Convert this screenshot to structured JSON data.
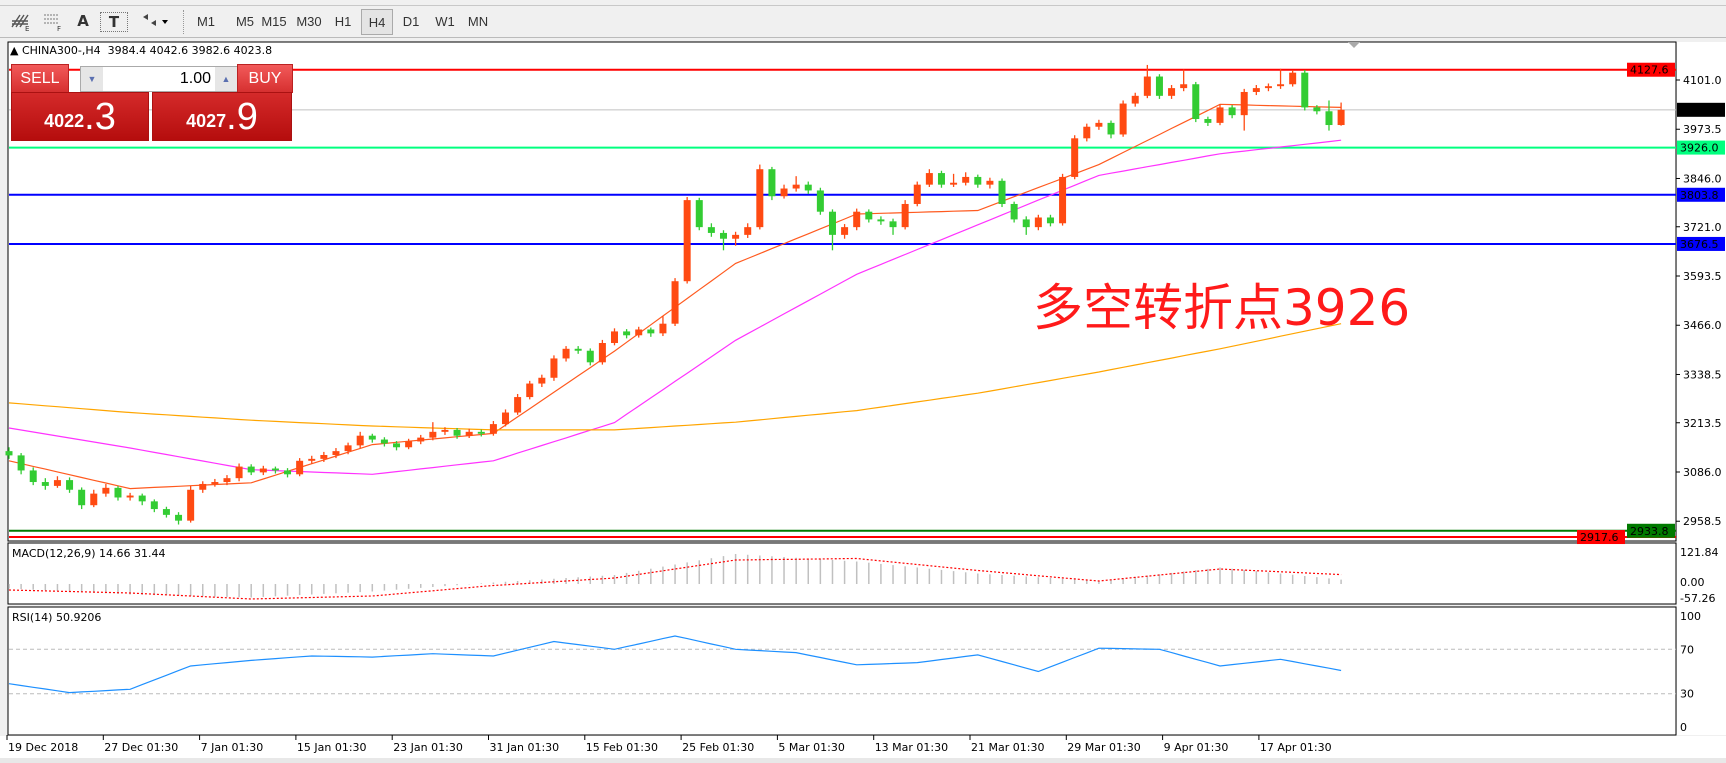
{
  "toolbar": {
    "tools": [
      {
        "icon": "fibonacci-expansion-icon"
      },
      {
        "icon": "fibonacci-fan-icon"
      },
      {
        "label": "A",
        "icon": "text-label-icon"
      },
      {
        "label": "T",
        "icon": "text-box-icon"
      },
      {
        "icon": "arrows-dropdown-icon"
      }
    ],
    "timeframes": [
      "M1",
      "M5",
      "M15",
      "M30",
      "H1",
      "H4",
      "D1",
      "W1",
      "MN"
    ],
    "selected_timeframe": "H4"
  },
  "chart": {
    "symbol_header": "CHINA300-,H4",
    "ohlc_header": "3984.4 4042.6 3982.6 4023.8",
    "annotation": "多空转折点3926",
    "annotation_color": "#ff1a1a"
  },
  "trade_panel": {
    "sell_label": "SELL",
    "buy_label": "BUY",
    "lot": "1.00",
    "sell_price_main": "4022",
    "sell_price_frac": ".3",
    "buy_price_main": "4027",
    "buy_price_frac": ".9"
  },
  "chart_data": [
    {
      "type": "candlestick",
      "title": "CHINA300-,H4",
      "bull_color": "#ff4a12",
      "bear_color": "#33cc33",
      "ylim": [
        2917,
        4199
      ],
      "price_ticks": [
        "4101.0",
        "3973.5",
        "3846.0",
        "3721.0",
        "3593.5",
        "3466.0",
        "3338.5",
        "3213.5",
        "3086.0",
        "2958.5"
      ],
      "time_ticks": [
        "19 Dec 2018",
        "27 Dec 01:30",
        "7 Jan 01:30",
        "15 Jan 01:30",
        "23 Jan 01:30",
        "31 Jan 01:30",
        "15 Feb 01:30",
        "25 Feb 01:30",
        "5 Mar 01:30",
        "13 Mar 01:30",
        "21 Mar 01:30",
        "29 Mar 01:30",
        "9 Apr 01:30",
        "17 Apr 01:30"
      ],
      "ohlc": [
        [
          3140,
          3150,
          3120,
          3129
        ],
        [
          3129,
          3135,
          3080,
          3090
        ],
        [
          3090,
          3098,
          3052,
          3060
        ],
        [
          3060,
          3070,
          3040,
          3050
        ],
        [
          3050,
          3075,
          3045,
          3065
        ],
        [
          3065,
          3072,
          3032,
          3040
        ],
        [
          3040,
          3046,
          2990,
          3000
        ],
        [
          3000,
          3040,
          2995,
          3030
        ],
        [
          3030,
          3055,
          3022,
          3045
        ],
        [
          3045,
          3050,
          3012,
          3020
        ],
        [
          3020,
          3032,
          3012,
          3025
        ],
        [
          3025,
          3030,
          3000,
          3010
        ],
        [
          3010,
          3015,
          2982,
          2990
        ],
        [
          2990,
          2996,
          2968,
          2975
        ],
        [
          2975,
          2982,
          2950,
          2960
        ],
        [
          2960,
          3050,
          2955,
          3040
        ],
        [
          3040,
          3062,
          3032,
          3055
        ],
        [
          3055,
          3068,
          3048,
          3060
        ],
        [
          3060,
          3078,
          3052,
          3070
        ],
        [
          3070,
          3108,
          3062,
          3100
        ],
        [
          3100,
          3106,
          3078,
          3085
        ],
        [
          3085,
          3102,
          3078,
          3095
        ],
        [
          3095,
          3100,
          3082,
          3090
        ],
        [
          3090,
          3096,
          3072,
          3080
        ],
        [
          3080,
          3122,
          3075,
          3115
        ],
        [
          3115,
          3128,
          3108,
          3120
        ],
        [
          3120,
          3138,
          3112,
          3130
        ],
        [
          3130,
          3148,
          3122,
          3140
        ],
        [
          3140,
          3162,
          3132,
          3155
        ],
        [
          3155,
          3190,
          3148,
          3180
        ],
        [
          3180,
          3185,
          3162,
          3170
        ],
        [
          3170,
          3176,
          3152,
          3160
        ],
        [
          3160,
          3166,
          3142,
          3150
        ],
        [
          3150,
          3172,
          3145,
          3165
        ],
        [
          3165,
          3182,
          3158,
          3175
        ],
        [
          3175,
          3215,
          3168,
          3190
        ],
        [
          3190,
          3202,
          3182,
          3195
        ],
        [
          3195,
          3200,
          3172,
          3180
        ],
        [
          3180,
          3198,
          3174,
          3190
        ],
        [
          3190,
          3196,
          3178,
          3185
        ],
        [
          3185,
          3218,
          3180,
          3210
        ],
        [
          3210,
          3248,
          3204,
          3240
        ],
        [
          3240,
          3288,
          3234,
          3280
        ],
        [
          3280,
          3322,
          3274,
          3315
        ],
        [
          3315,
          3338,
          3306,
          3330
        ],
        [
          3330,
          3388,
          3322,
          3380
        ],
        [
          3380,
          3412,
          3372,
          3405
        ],
        [
          3405,
          3412,
          3392,
          3400
        ],
        [
          3400,
          3406,
          3362,
          3370
        ],
        [
          3370,
          3428,
          3364,
          3420
        ],
        [
          3420,
          3458,
          3414,
          3450
        ],
        [
          3450,
          3456,
          3432,
          3440
        ],
        [
          3440,
          3462,
          3434,
          3455
        ],
        [
          3455,
          3460,
          3436,
          3445
        ],
        [
          3445,
          3490,
          3438,
          3470
        ],
        [
          3470,
          3588,
          3464,
          3580
        ],
        [
          3580,
          3798,
          3574,
          3790
        ],
        [
          3790,
          3796,
          3712,
          3720
        ],
        [
          3720,
          3730,
          3695,
          3705
        ],
        [
          3705,
          3712,
          3660,
          3690
        ],
        [
          3690,
          3708,
          3672,
          3700
        ],
        [
          3700,
          3730,
          3692,
          3720
        ],
        [
          3720,
          3882,
          3714,
          3870
        ],
        [
          3870,
          3876,
          3790,
          3800
        ],
        [
          3800,
          3830,
          3794,
          3820
        ],
        [
          3820,
          3852,
          3812,
          3830
        ],
        [
          3830,
          3838,
          3806,
          3815
        ],
        [
          3815,
          3822,
          3752,
          3760
        ],
        [
          3760,
          3766,
          3660,
          3700
        ],
        [
          3700,
          3728,
          3690,
          3720
        ],
        [
          3720,
          3768,
          3712,
          3760
        ],
        [
          3760,
          3766,
          3732,
          3740
        ],
        [
          3740,
          3748,
          3726,
          3735
        ],
        [
          3735,
          3742,
          3700,
          3720
        ],
        [
          3720,
          3790,
          3714,
          3780
        ],
        [
          3780,
          3838,
          3774,
          3830
        ],
        [
          3830,
          3870,
          3824,
          3860
        ],
        [
          3860,
          3866,
          3822,
          3830
        ],
        [
          3830,
          3858,
          3824,
          3835
        ],
        [
          3835,
          3862,
          3828,
          3850
        ],
        [
          3850,
          3856,
          3822,
          3830
        ],
        [
          3830,
          3848,
          3820,
          3840
        ],
        [
          3840,
          3846,
          3772,
          3780
        ],
        [
          3780,
          3786,
          3732,
          3740
        ],
        [
          3740,
          3748,
          3700,
          3720
        ],
        [
          3720,
          3752,
          3712,
          3745
        ],
        [
          3745,
          3752,
          3722,
          3730
        ],
        [
          3730,
          3858,
          3724,
          3850
        ],
        [
          3850,
          3958,
          3844,
          3950
        ],
        [
          3950,
          3988,
          3942,
          3980
        ],
        [
          3980,
          3998,
          3972,
          3990
        ],
        [
          3990,
          3996,
          3950,
          3960
        ],
        [
          3960,
          4048,
          3954,
          4040
        ],
        [
          4040,
          4068,
          4032,
          4060
        ],
        [
          4060,
          4140,
          4054,
          4110
        ],
        [
          4110,
          4116,
          4052,
          4060
        ],
        [
          4060,
          4088,
          4052,
          4080
        ],
        [
          4080,
          4128,
          4072,
          4090
        ],
        [
          4090,
          4096,
          3992,
          4000
        ],
        [
          4000,
          4006,
          3982,
          3990
        ],
        [
          3990,
          4038,
          3984,
          4030
        ],
        [
          4030,
          4036,
          4002,
          4010
        ],
        [
          4010,
          4078,
          3970,
          4070
        ],
        [
          4070,
          4088,
          4062,
          4080
        ],
        [
          4080,
          4092,
          4072,
          4085
        ],
        [
          4085,
          4130,
          4078,
          4090
        ],
        [
          4090,
          4127,
          4084,
          4120
        ],
        [
          4120,
          4127,
          4022,
          4030
        ],
        [
          4030,
          4036,
          4012,
          4020
        ],
        [
          4020,
          4048,
          3970,
          3984.4
        ],
        [
          3984.4,
          4042.6,
          3982.6,
          4023.8
        ]
      ],
      "moving_averages_sampled_every_10_bars": [
        {
          "color": "#ff5a1f",
          "values": [
            3115,
            3043,
            3058,
            3157,
            3186,
            3399,
            3626,
            3754,
            3763,
            3882,
            4038,
            4030
          ]
        },
        {
          "color": "#ff33ff",
          "values": [
            3200,
            3148,
            3092,
            3080,
            3115,
            3214,
            3427,
            3598,
            3726,
            3854,
            3910,
            3945
          ]
        },
        {
          "color": "#ffa500",
          "values": [
            3265,
            3240,
            3220,
            3205,
            3195,
            3195,
            3215,
            3245,
            3290,
            3345,
            3405,
            3470
          ]
        }
      ],
      "horizontal_lines": [
        {
          "price": "4127.6",
          "color": "#ff0000",
          "label_bg": "#ff0000"
        },
        {
          "price": "4023.8",
          "color": "#c0c0c0",
          "label_bg": "#000000"
        },
        {
          "price": "3926.0",
          "color": "#00ff7f",
          "label_bg": "#00ff7f"
        },
        {
          "price": "3803.8",
          "color": "#0000ff",
          "label_bg": "#0000ff"
        },
        {
          "price": "3676.5",
          "color": "#0000ff",
          "label_bg": "#0000ff"
        },
        {
          "price": "2933.8",
          "color": "#007a00",
          "label_bg": "#007a00"
        },
        {
          "price": "2917.6",
          "color": "#ff0000",
          "label_bg": "#ff0000"
        }
      ]
    },
    {
      "type": "bar",
      "title": "MACD(12,26,9) 14.66 31.44",
      "ylim": [
        -57.26,
        121.84
      ],
      "ticks": [
        "121.84",
        "0.00",
        "-57.26"
      ],
      "histogram_sampled_every_10_bars": [
        -15,
        -35,
        -45,
        -25,
        5,
        30,
        100,
        75,
        35,
        10,
        55,
        14.66
      ],
      "signal_sampled_every_10_bars": [
        -20,
        -30,
        -50,
        -40,
        -5,
        20,
        80,
        85,
        45,
        10,
        50,
        31.44
      ],
      "histogram_color": "#c0c0c0",
      "signal_color": "#ff0000"
    },
    {
      "type": "line",
      "title": "RSI(14) 50.9206",
      "ylim": [
        0,
        100
      ],
      "ticks": [
        "100",
        "70",
        "30",
        "0"
      ],
      "levels": [
        70,
        30
      ],
      "values_sampled_every_5_bars": [
        39,
        31,
        34,
        55,
        60,
        64,
        63,
        66,
        64,
        77,
        70,
        82,
        70,
        67,
        56,
        58,
        65,
        50,
        71,
        70,
        55,
        61,
        50.92
      ],
      "color": "#1e90ff"
    }
  ]
}
